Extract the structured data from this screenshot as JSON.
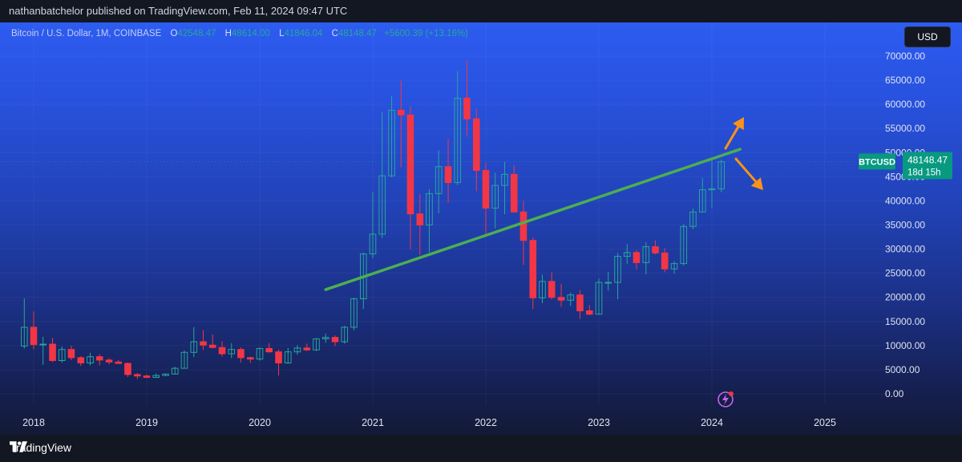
{
  "publish_line": "nathanbatchelor published on TradingView.com, Feb 11, 2024 09:47 UTC",
  "legend": {
    "symbol": "Bitcoin / U.S. Dollar, 1M, COINBASE",
    "o_label": "O",
    "o_value": "42548.47",
    "h_label": "H",
    "h_value": "48614.00",
    "l_label": "L",
    "l_value": "41846.04",
    "c_label": "C",
    "c_value": "48148.47",
    "change": "+5600.39 (+13.16%)"
  },
  "currency_button": "USD",
  "price_tag": {
    "ticker": "BTCUSD",
    "price": "48148.47",
    "countdown": "18d 15h"
  },
  "brand": "TradingView",
  "colors": {
    "up": "#26a69a",
    "down": "#f23645",
    "trendline": "#4caf50",
    "arrow": "#f7931a",
    "price_tag": "#089981"
  },
  "icons": {
    "alert": "lightning-alert-icon",
    "logo": "tradingview-logo-icon"
  },
  "chart_data": {
    "type": "candlestick",
    "title": "Bitcoin / U.S. Dollar, 1M, COINBASE",
    "ylim": [
      0,
      70000
    ],
    "y_ticks": [
      "70000.00",
      "65000.00",
      "60000.00",
      "55000.00",
      "50000.00",
      "45000.00",
      "40000.00",
      "35000.00",
      "30000.00",
      "25000.00",
      "20000.00",
      "15000.00",
      "10000.00",
      "5000.00",
      "0.00"
    ],
    "x_ticks": [
      "2018",
      "2019",
      "2020",
      "2021",
      "2022",
      "2023",
      "2024",
      "2025"
    ],
    "ohlc": [
      [
        2017.917,
        9900,
        19800,
        9400,
        13800
      ],
      [
        2018.0,
        13800,
        17100,
        9200,
        10200
      ],
      [
        2018.083,
        10200,
        11800,
        6000,
        10300
      ],
      [
        2018.167,
        10300,
        11600,
        6600,
        6900
      ],
      [
        2018.25,
        6900,
        9800,
        6500,
        9200
      ],
      [
        2018.333,
        9200,
        10000,
        7000,
        7500
      ],
      [
        2018.417,
        7500,
        7800,
        5800,
        6400
      ],
      [
        2018.5,
        6400,
        8500,
        5900,
        7700
      ],
      [
        2018.583,
        7700,
        8200,
        5900,
        7000
      ],
      [
        2018.667,
        7000,
        7400,
        6100,
        6600
      ],
      [
        2018.75,
        6600,
        7000,
        6200,
        6300
      ],
      [
        2018.833,
        6300,
        6500,
        3500,
        4000
      ],
      [
        2018.917,
        4000,
        4300,
        3100,
        3700
      ],
      [
        2019.0,
        3700,
        4000,
        3300,
        3400
      ],
      [
        2019.083,
        3400,
        4200,
        3300,
        3800
      ],
      [
        2019.167,
        3800,
        4200,
        3700,
        4100
      ],
      [
        2019.25,
        4100,
        5600,
        4000,
        5300
      ],
      [
        2019.333,
        5300,
        9000,
        5300,
        8600
      ],
      [
        2019.417,
        8600,
        13800,
        7600,
        10800
      ],
      [
        2019.5,
        10800,
        13200,
        9100,
        10100
      ],
      [
        2019.583,
        10100,
        12300,
        9400,
        9600
      ],
      [
        2019.667,
        9600,
        10900,
        7700,
        8300
      ],
      [
        2019.75,
        8300,
        10500,
        7400,
        9200
      ],
      [
        2019.833,
        9200,
        9600,
        6500,
        7500
      ],
      [
        2019.917,
        7500,
        7700,
        6400,
        7200
      ],
      [
        2020.0,
        7200,
        9600,
        6900,
        9400
      ],
      [
        2020.083,
        9400,
        10500,
        8500,
        8700
      ],
      [
        2020.167,
        8700,
        9200,
        3800,
        6400
      ],
      [
        2020.25,
        6400,
        9500,
        6200,
        8700
      ],
      [
        2020.333,
        8700,
        10100,
        8100,
        9500
      ],
      [
        2020.417,
        9500,
        10400,
        8900,
        9100
      ],
      [
        2020.5,
        9100,
        11500,
        8900,
        11400
      ],
      [
        2020.583,
        11400,
        12500,
        10600,
        11700
      ],
      [
        2020.667,
        11700,
        12100,
        9900,
        10800
      ],
      [
        2020.75,
        10800,
        14100,
        10400,
        13800
      ],
      [
        2020.833,
        13800,
        19900,
        13200,
        19700
      ],
      [
        2020.917,
        19700,
        29300,
        17600,
        29000
      ],
      [
        2021.0,
        29000,
        41900,
        28100,
        33100
      ],
      [
        2021.083,
        33100,
        58400,
        32300,
        45200
      ],
      [
        2021.167,
        45200,
        61800,
        44900,
        58800
      ],
      [
        2021.25,
        58800,
        64900,
        47000,
        57800
      ],
      [
        2021.333,
        57800,
        59600,
        30000,
        37300
      ],
      [
        2021.417,
        37300,
        41400,
        28800,
        35000
      ],
      [
        2021.5,
        35000,
        42400,
        29300,
        41500
      ],
      [
        2021.583,
        41500,
        50500,
        37400,
        47100
      ],
      [
        2021.667,
        47100,
        52900,
        39600,
        43800
      ],
      [
        2021.75,
        43800,
        66900,
        43300,
        61300
      ],
      [
        2021.833,
        61300,
        69000,
        53300,
        57000
      ],
      [
        2021.917,
        57000,
        59100,
        42000,
        46300
      ],
      [
        2022.0,
        46300,
        47900,
        33000,
        38500
      ],
      [
        2022.083,
        38500,
        45800,
        34300,
        43200
      ],
      [
        2022.167,
        43200,
        48100,
        37200,
        45500
      ],
      [
        2022.25,
        45500,
        47400,
        37700,
        37700
      ],
      [
        2022.333,
        37700,
        40000,
        26700,
        31800
      ],
      [
        2022.417,
        31800,
        32400,
        17600,
        19900
      ],
      [
        2022.5,
        19900,
        24700,
        18800,
        23300
      ],
      [
        2022.583,
        23300,
        25200,
        19600,
        20000
      ],
      [
        2022.667,
        20000,
        22800,
        18100,
        19400
      ],
      [
        2022.75,
        19400,
        21000,
        18200,
        20500
      ],
      [
        2022.833,
        20500,
        21500,
        15500,
        17200
      ],
      [
        2022.917,
        17200,
        18400,
        16300,
        16500
      ],
      [
        2023.0,
        16500,
        23900,
        16500,
        23100
      ],
      [
        2023.083,
        23100,
        25300,
        21400,
        23100
      ],
      [
        2023.167,
        23100,
        29200,
        19600,
        28500
      ],
      [
        2023.25,
        28500,
        31000,
        26900,
        29300
      ],
      [
        2023.333,
        29300,
        29800,
        25800,
        27200
      ],
      [
        2023.417,
        27200,
        31400,
        24800,
        30500
      ],
      [
        2023.5,
        30500,
        31800,
        28900,
        29200
      ],
      [
        2023.583,
        29200,
        30200,
        25200,
        25900
      ],
      [
        2023.667,
        25900,
        27500,
        24900,
        27000
      ],
      [
        2023.75,
        27000,
        35200,
        26600,
        34700
      ],
      [
        2023.833,
        34700,
        38400,
        34100,
        37700
      ],
      [
        2023.917,
        37700,
        44700,
        37600,
        42300
      ],
      [
        2024.0,
        42300,
        48900,
        38500,
        42500
      ],
      [
        2024.083,
        42500,
        48600,
        41800,
        48100
      ]
    ],
    "trendline": [
      [
        2020.583,
        21600
      ],
      [
        2024.25,
        50700
      ]
    ],
    "last_price": 48148.47
  }
}
